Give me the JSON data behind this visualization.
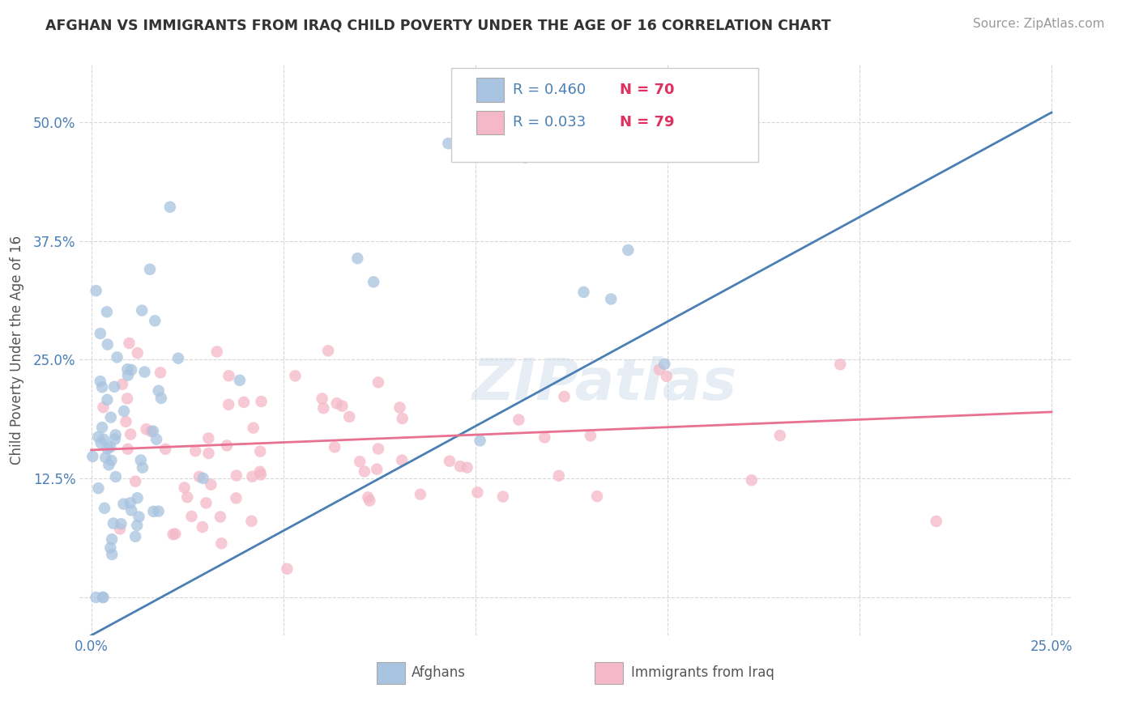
{
  "title": "AFGHAN VS IMMIGRANTS FROM IRAQ CHILD POVERTY UNDER THE AGE OF 16 CORRELATION CHART",
  "source": "Source: ZipAtlas.com",
  "xlabel_afghans": "Afghans",
  "xlabel_iraq": "Immigrants from Iraq",
  "ylabel": "Child Poverty Under the Age of 16",
  "afghan_R": 0.46,
  "afghan_N": 70,
  "iraq_R": 0.033,
  "iraq_N": 79,
  "afghan_color": "#a8c4e0",
  "iraq_color": "#f4b8c8",
  "afghan_line_color": "#4a7fb5",
  "iraq_line_color": "#e87090",
  "background_color": "#ffffff",
  "grid_color": "#cccccc",
  "watermark": "ZIPatlas",
  "title_color": "#333333",
  "tick_color": "#4a7fb5",
  "ylabel_color": "#555555",
  "legend_R_label_color": "#333333",
  "legend_R_value_color": "#4a7fb5",
  "legend_N_label_color": "#333333",
  "legend_N_value_color": "#e03060",
  "source_color": "#999999",
  "bottom_label_color": "#555555"
}
